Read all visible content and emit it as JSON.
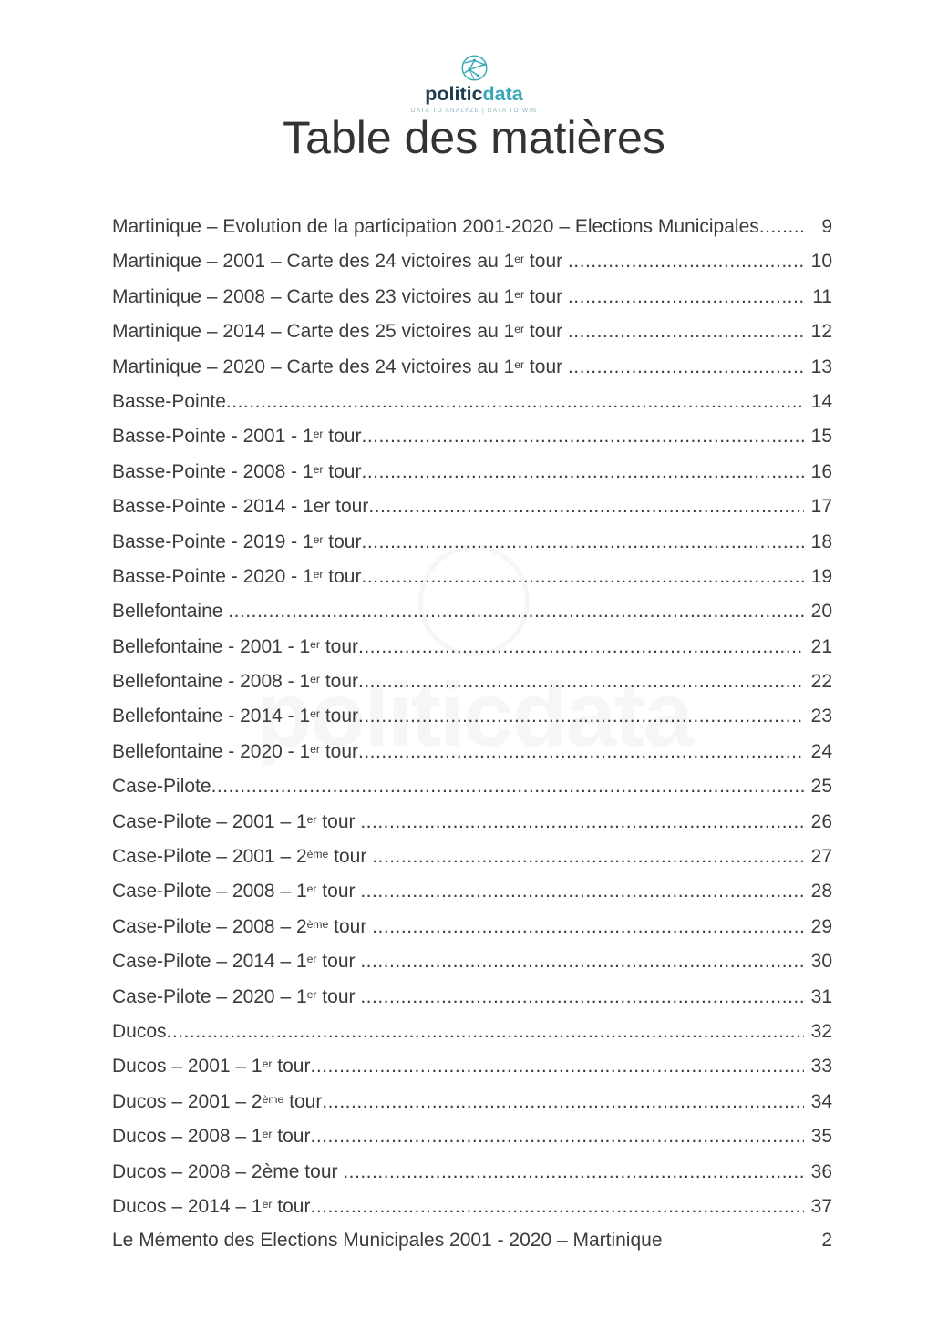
{
  "logo": {
    "brand_dark": "politic",
    "brand_accent": "data",
    "tagline": "DATA TO ANALYZE | DATA TO WIN",
    "accent_color": "#39a9ba",
    "dark_color": "#1d3c4e"
  },
  "title": "Table des matières",
  "watermark": {
    "text": "politicdata"
  },
  "toc": {
    "entries": [
      {
        "segments": [
          [
            "t",
            "Martinique – Evolution de la participation 2001-2020 – Elections Municipales"
          ]
        ],
        "page": "9"
      },
      {
        "segments": [
          [
            "t",
            "Martinique – 2001 – Carte des 24 victoires au 1"
          ],
          [
            "sup",
            "er"
          ],
          [
            "t",
            " tour "
          ]
        ],
        "page": "10"
      },
      {
        "segments": [
          [
            "t",
            "Martinique – 2008 – Carte des 23 victoires au 1"
          ],
          [
            "sup",
            "er"
          ],
          [
            "t",
            " tour "
          ]
        ],
        "page": "11"
      },
      {
        "segments": [
          [
            "t",
            "Martinique – 2014 – Carte des 25 victoires au 1"
          ],
          [
            "sup",
            "er"
          ],
          [
            "t",
            " tour "
          ]
        ],
        "page": "12"
      },
      {
        "segments": [
          [
            "t",
            "Martinique – 2020 – Carte des 24 victoires au 1"
          ],
          [
            "sup",
            "er"
          ],
          [
            "t",
            " tour "
          ]
        ],
        "page": "13"
      },
      {
        "segments": [
          [
            "t",
            "Basse-Pointe"
          ]
        ],
        "page": "14"
      },
      {
        "segments": [
          [
            "t",
            "Basse-Pointe - 2001 - 1"
          ],
          [
            "sup",
            "er"
          ],
          [
            "t",
            " tour"
          ]
        ],
        "page": "15"
      },
      {
        "segments": [
          [
            "t",
            "Basse-Pointe - 2008 - 1"
          ],
          [
            "sup",
            "er"
          ],
          [
            "t",
            " tour"
          ]
        ],
        "page": "16"
      },
      {
        "segments": [
          [
            "t",
            "Basse-Pointe - 2014 - 1er tour"
          ]
        ],
        "page": "17"
      },
      {
        "segments": [
          [
            "t",
            "Basse-Pointe - 2019 - 1"
          ],
          [
            "sup",
            "er"
          ],
          [
            "t",
            " tour"
          ]
        ],
        "page": "18"
      },
      {
        "segments": [
          [
            "t",
            "Basse-Pointe - 2020 - 1"
          ],
          [
            "sup",
            "er"
          ],
          [
            "t",
            " tour"
          ]
        ],
        "page": "19"
      },
      {
        "segments": [
          [
            "t",
            "Bellefontaine "
          ]
        ],
        "page": "20"
      },
      {
        "segments": [
          [
            "t",
            "Bellefontaine - 2001 - 1"
          ],
          [
            "sup",
            "er"
          ],
          [
            "t",
            " tour"
          ]
        ],
        "page": "21"
      },
      {
        "segments": [
          [
            "t",
            "Bellefontaine - 2008 - 1"
          ],
          [
            "sup",
            "er"
          ],
          [
            "t",
            " tour"
          ]
        ],
        "page": "22"
      },
      {
        "segments": [
          [
            "t",
            "Bellefontaine - 2014 - 1"
          ],
          [
            "sup",
            "er"
          ],
          [
            "t",
            " tour"
          ]
        ],
        "page": "23"
      },
      {
        "segments": [
          [
            "t",
            "Bellefontaine - 2020 - 1"
          ],
          [
            "sup",
            "er"
          ],
          [
            "t",
            " tour"
          ]
        ],
        "page": "24"
      },
      {
        "segments": [
          [
            "t",
            "Case-Pilote"
          ]
        ],
        "page": "25"
      },
      {
        "segments": [
          [
            "t",
            "Case-Pilote – 2001 – 1"
          ],
          [
            "sup",
            "er"
          ],
          [
            "t",
            " tour "
          ]
        ],
        "page": "26"
      },
      {
        "segments": [
          [
            "t",
            "Case-Pilote – 2001 – 2"
          ],
          [
            "sup",
            "ème"
          ],
          [
            "t",
            " tour "
          ]
        ],
        "page": "27"
      },
      {
        "segments": [
          [
            "t",
            "Case-Pilote – 2008 – 1"
          ],
          [
            "sup",
            "er"
          ],
          [
            "t",
            " tour "
          ]
        ],
        "page": "28"
      },
      {
        "segments": [
          [
            "t",
            "Case-Pilote – 2008 – 2"
          ],
          [
            "sup",
            "ème"
          ],
          [
            "t",
            " tour "
          ]
        ],
        "page": "29"
      },
      {
        "segments": [
          [
            "t",
            "Case-Pilote – 2014 – 1"
          ],
          [
            "sup",
            "er"
          ],
          [
            "t",
            " tour "
          ]
        ],
        "page": "30"
      },
      {
        "segments": [
          [
            "t",
            "Case-Pilote – 2020 – 1"
          ],
          [
            "sup",
            "er"
          ],
          [
            "t",
            " tour "
          ]
        ],
        "page": "31"
      },
      {
        "segments": [
          [
            "t",
            "Ducos"
          ]
        ],
        "page": "32"
      },
      {
        "segments": [
          [
            "t",
            "Ducos – 2001 – 1"
          ],
          [
            "sup",
            "er"
          ],
          [
            "t",
            " tour"
          ]
        ],
        "page": "33"
      },
      {
        "segments": [
          [
            "t",
            "Ducos – 2001 – 2"
          ],
          [
            "sup",
            "ème"
          ],
          [
            "t",
            " tour"
          ]
        ],
        "page": "34"
      },
      {
        "segments": [
          [
            "t",
            "Ducos – 2008 – 1"
          ],
          [
            "sup",
            "er"
          ],
          [
            "t",
            " tour"
          ]
        ],
        "page": "35"
      },
      {
        "segments": [
          [
            "t",
            "Ducos – 2008 – 2ème tour "
          ]
        ],
        "page": "36"
      },
      {
        "segments": [
          [
            "t",
            "Ducos – 2014 – 1"
          ],
          [
            "sup",
            "er"
          ],
          [
            "t",
            " tour"
          ]
        ],
        "page": "37"
      }
    ]
  },
  "footer": {
    "text": "Le Mémento des Elections Municipales 2001 - 2020 – Martinique",
    "page_number": "2"
  }
}
